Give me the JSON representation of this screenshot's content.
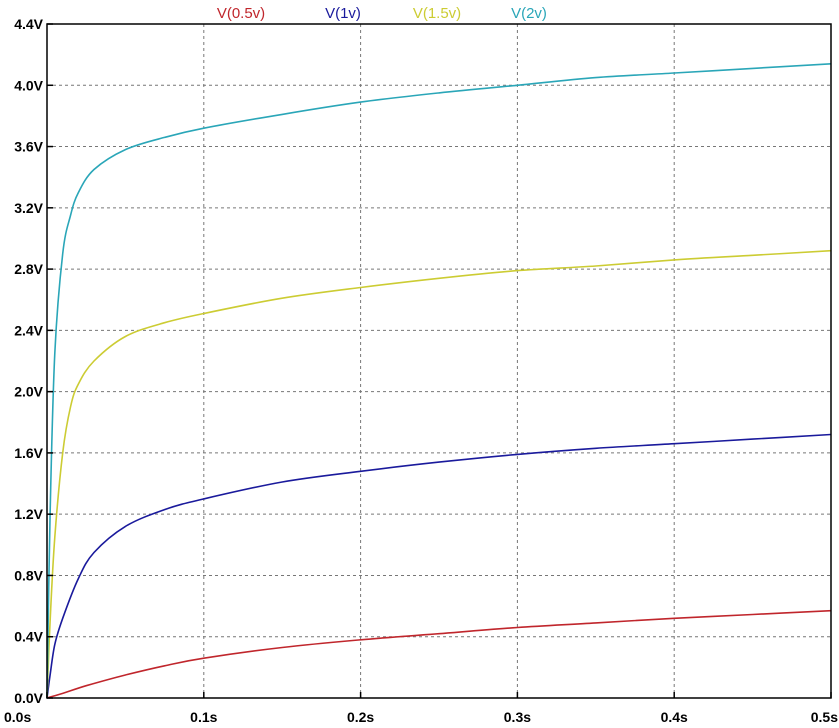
{
  "chart_data": {
    "type": "line",
    "xlabel": "",
    "ylabel": "",
    "xlim": [
      0,
      0.5
    ],
    "ylim": [
      0,
      4.4
    ],
    "grid": true,
    "legend_position": "top",
    "x_ticks": [
      {
        "value": 0.0,
        "label": "0.0s"
      },
      {
        "value": 0.1,
        "label": "0.1s"
      },
      {
        "value": 0.2,
        "label": "0.2s"
      },
      {
        "value": 0.3,
        "label": "0.3s"
      },
      {
        "value": 0.4,
        "label": "0.4s"
      },
      {
        "value": 0.5,
        "label": "0.5s"
      }
    ],
    "y_ticks": [
      {
        "value": 0.0,
        "label": "0.0V"
      },
      {
        "value": 0.4,
        "label": "0.4V"
      },
      {
        "value": 0.8,
        "label": "0.8V"
      },
      {
        "value": 1.2,
        "label": "1.2V"
      },
      {
        "value": 1.6,
        "label": "1.6V"
      },
      {
        "value": 2.0,
        "label": "2.0V"
      },
      {
        "value": 2.4,
        "label": "2.4V"
      },
      {
        "value": 2.8,
        "label": "2.8V"
      },
      {
        "value": 3.2,
        "label": "3.2V"
      },
      {
        "value": 3.6,
        "label": "3.6V"
      },
      {
        "value": 4.0,
        "label": "4.0V"
      },
      {
        "value": 4.4,
        "label": "4.4V"
      }
    ],
    "series": [
      {
        "name": "V(0.5v)",
        "color": "#c0262c",
        "x": [
          0,
          0.01,
          0.025,
          0.05,
          0.075,
          0.1,
          0.15,
          0.2,
          0.25,
          0.3,
          0.35,
          0.4,
          0.45,
          0.5
        ],
        "y": [
          0,
          0.03,
          0.08,
          0.15,
          0.21,
          0.26,
          0.33,
          0.38,
          0.42,
          0.46,
          0.49,
          0.52,
          0.545,
          0.57
        ]
      },
      {
        "name": "V(1v)",
        "color": "#1a1a9c",
        "x": [
          0,
          0.002,
          0.005,
          0.01,
          0.02,
          0.03,
          0.05,
          0.075,
          0.1,
          0.15,
          0.2,
          0.25,
          0.3,
          0.35,
          0.4,
          0.45,
          0.5
        ],
        "y": [
          0,
          0.15,
          0.35,
          0.52,
          0.78,
          0.95,
          1.12,
          1.23,
          1.3,
          1.41,
          1.48,
          1.54,
          1.59,
          1.63,
          1.66,
          1.69,
          1.72
        ]
      },
      {
        "name": "V(1.5v)",
        "color": "#cccc33",
        "x": [
          0,
          0.002,
          0.005,
          0.01,
          0.015,
          0.02,
          0.03,
          0.05,
          0.075,
          0.1,
          0.15,
          0.2,
          0.25,
          0.3,
          0.35,
          0.4,
          0.45,
          0.5
        ],
        "y": [
          0,
          0.5,
          1.05,
          1.6,
          1.9,
          2.05,
          2.2,
          2.36,
          2.45,
          2.51,
          2.61,
          2.68,
          2.74,
          2.79,
          2.82,
          2.86,
          2.89,
          2.92
        ]
      },
      {
        "name": "V(2v)",
        "color": "#2aa6b8",
        "x": [
          0,
          0.002,
          0.005,
          0.01,
          0.015,
          0.02,
          0.03,
          0.05,
          0.075,
          0.1,
          0.15,
          0.2,
          0.25,
          0.3,
          0.35,
          0.4,
          0.45,
          0.5
        ],
        "y": [
          0,
          1.2,
          2.25,
          2.9,
          3.15,
          3.3,
          3.45,
          3.58,
          3.66,
          3.72,
          3.81,
          3.89,
          3.95,
          4.0,
          4.05,
          4.08,
          4.11,
          4.14
        ]
      }
    ]
  }
}
